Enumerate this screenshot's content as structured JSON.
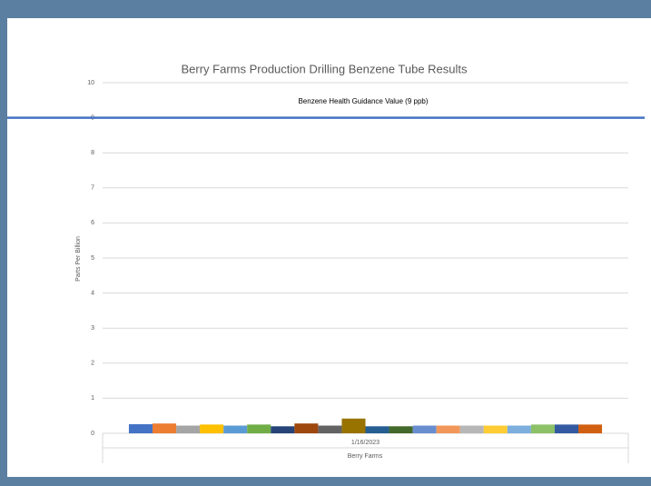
{
  "chart_data": {
    "type": "bar",
    "title": "Berry Farms Production Drilling Benzene Tube Results",
    "y_label": "Parts Per Billion",
    "x_label": "Berry Farms",
    "categories": [
      "1/16/2023"
    ],
    "series": [
      {
        "color": "#4472c4",
        "values": [
          0.26
        ]
      },
      {
        "color": "#ed7d31",
        "values": [
          0.28
        ]
      },
      {
        "color": "#a5a5a5",
        "values": [
          0.22
        ]
      },
      {
        "color": "#ffc000",
        "values": [
          0.25
        ]
      },
      {
        "color": "#5b9bd5",
        "values": [
          0.22
        ]
      },
      {
        "color": "#70ad47",
        "values": [
          0.25
        ]
      },
      {
        "color": "#264478",
        "values": [
          0.2
        ]
      },
      {
        "color": "#9e480e",
        "values": [
          0.28
        ]
      },
      {
        "color": "#636363",
        "values": [
          0.22
        ]
      },
      {
        "color": "#997300",
        "values": [
          0.42
        ]
      },
      {
        "color": "#255e91",
        "values": [
          0.2
        ]
      },
      {
        "color": "#43682b",
        "values": [
          0.2
        ]
      },
      {
        "color": "#698ed0",
        "values": [
          0.22
        ]
      },
      {
        "color": "#f1975a",
        "values": [
          0.22
        ]
      },
      {
        "color": "#b7b7b7",
        "values": [
          0.22
        ]
      },
      {
        "color": "#ffcd33",
        "values": [
          0.22
        ]
      },
      {
        "color": "#7cafdd",
        "values": [
          0.22
        ]
      },
      {
        "color": "#8cc168",
        "values": [
          0.25
        ]
      },
      {
        "color": "#335aa1",
        "values": [
          0.25
        ]
      },
      {
        "color": "#d26012",
        "values": [
          0.25
        ]
      }
    ],
    "reference_line": {
      "value": 9,
      "label": "Benzene Health Guidance Value (9 ppb)",
      "color": "#4472c4"
    },
    "ylim": [
      0,
      10
    ],
    "yticks": [
      0,
      1,
      2,
      3,
      4,
      5,
      6,
      7,
      8,
      9,
      10
    ],
    "grid": true
  }
}
